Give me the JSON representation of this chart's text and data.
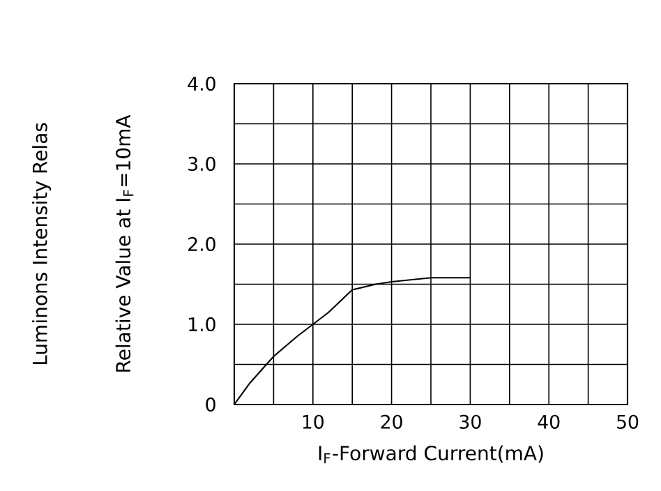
{
  "chart_data": {
    "type": "line",
    "xlabel": "I$_{F}$-Forward Current(mA)",
    "ylabel": "Relative Value at I$_{F}$=10mA",
    "annotations": [
      "Luminons Intensity Relas"
    ],
    "x": [
      0,
      2,
      5,
      8,
      10,
      12,
      15,
      18,
      20,
      25,
      30
    ],
    "series": [
      {
        "color": "#000000",
        "values": [
          0,
          0.27,
          0.6,
          0.85,
          1.0,
          1.15,
          1.43,
          1.5,
          1.53,
          1.58,
          1.58
        ]
      }
    ],
    "xlim": [
      0,
      50
    ],
    "ylim": [
      0,
      4
    ],
    "xticks": [
      {
        "value": 0,
        "label": null
      },
      {
        "value": 5,
        "label": null
      },
      10,
      {
        "value": 15,
        "label": null
      },
      20,
      {
        "value": 25,
        "label": null
      },
      30,
      {
        "value": 35,
        "label": null
      },
      40,
      {
        "value": 45,
        "label": null
      },
      50
    ],
    "yticks": [
      0,
      {
        "value": 0.5,
        "label": null
      },
      {
        "value": 1,
        "label": "1.0"
      },
      {
        "value": 1.5,
        "label": null
      },
      {
        "value": 2,
        "label": "2.0"
      },
      {
        "value": 2.5,
        "label": null
      },
      {
        "value": 3,
        "label": "3.0"
      },
      {
        "value": 3.5,
        "label": null
      },
      {
        "value": 4,
        "label": "4.0"
      }
    ],
    "grid": true,
    "marker": "none",
    "line_style": "solid"
  }
}
